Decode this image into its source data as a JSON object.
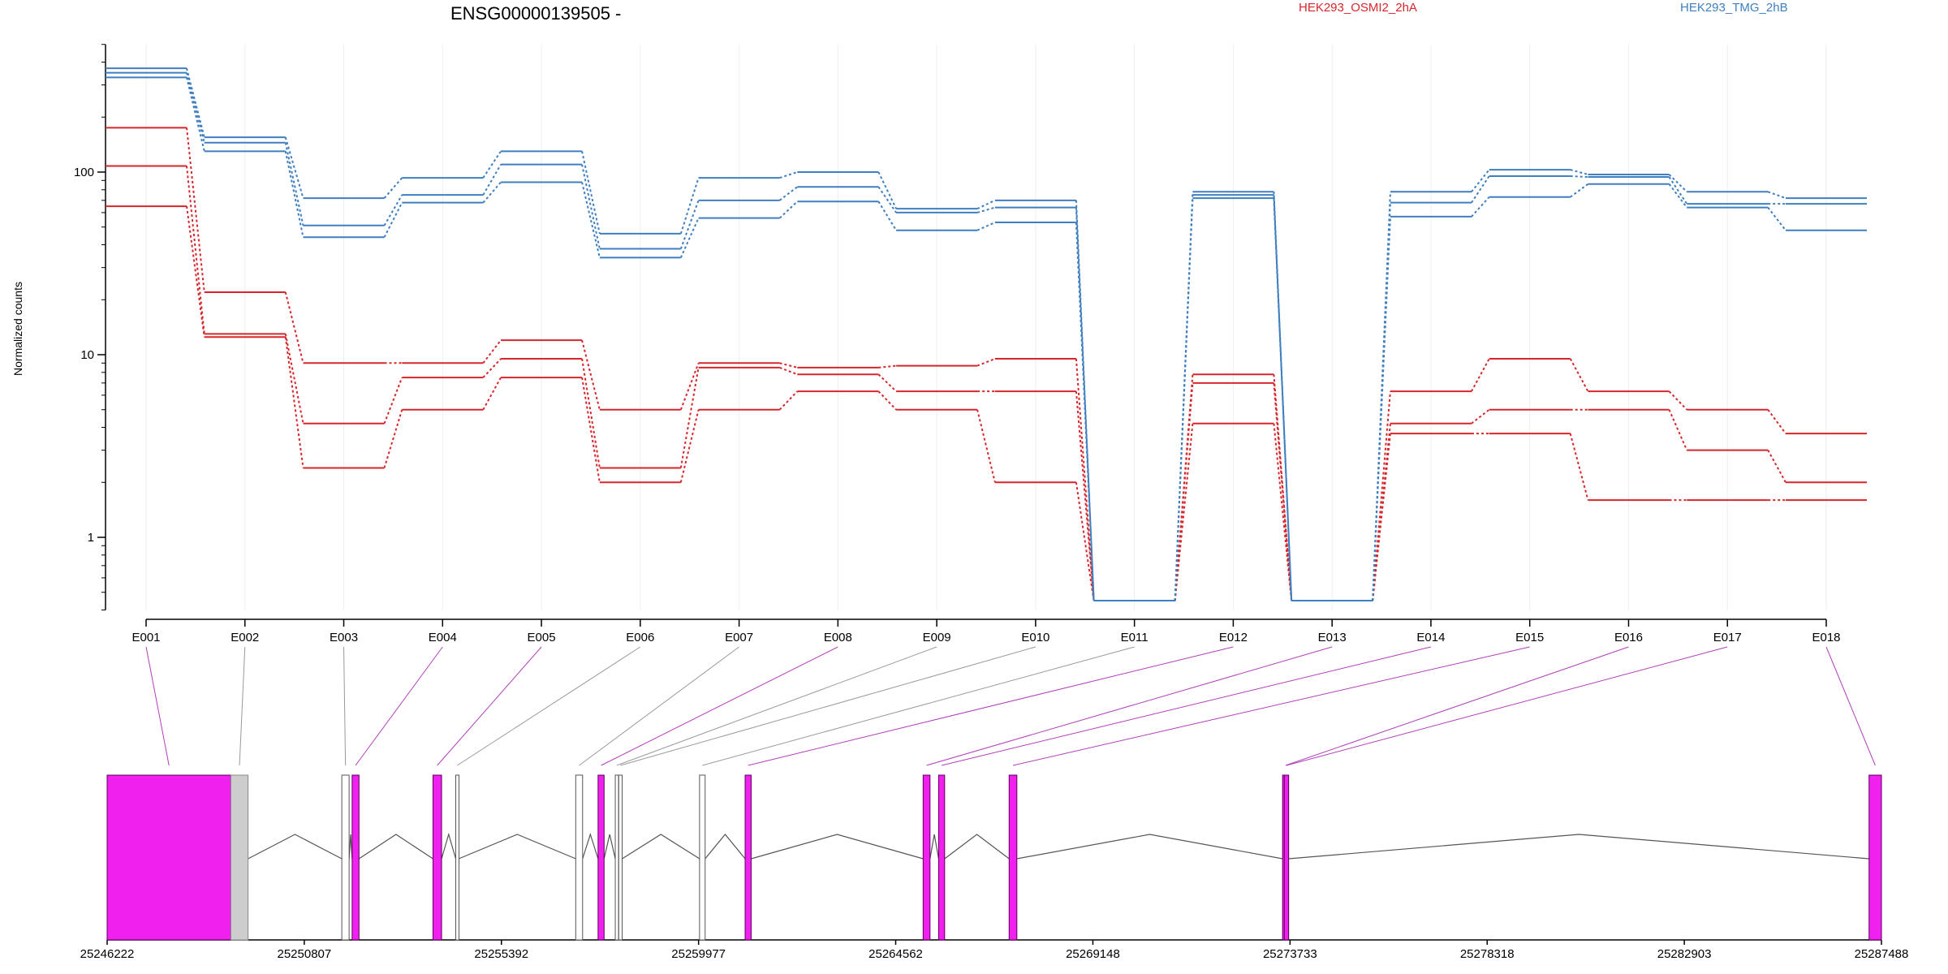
{
  "title": "ENSG00000139505 -",
  "legend": [
    {
      "name": "HEK293_OSMI2_2hA",
      "color": "#d7262b"
    },
    {
      "name": "HEK293_TMG_2hB",
      "color": "#3f7fbf"
    }
  ],
  "colors": {
    "osmi": "#d7262b",
    "tmg": "#3f7fbf",
    "significant_exon": "#f020ef",
    "gray_exon": "#cdcdcd",
    "axis": "#000000",
    "grid": "#eeeeee",
    "connector_significant": "#b040b8",
    "connector_plain": "#9a9a9a"
  },
  "chart_data": {
    "type": "line",
    "ylabel": "Normalized counts",
    "yscale": "log",
    "ylim": [
      0.4,
      500
    ],
    "yticks": [
      1,
      10,
      100
    ],
    "ytick_labels": [
      "1",
      "10",
      "100"
    ],
    "categories": [
      "E001",
      "E002",
      "E003",
      "E004",
      "E005",
      "E006",
      "E007",
      "E008",
      "E009",
      "E010",
      "E011",
      "E012",
      "E013",
      "E014",
      "E015",
      "E016",
      "E017",
      "E018"
    ],
    "series": [
      {
        "group": "HEK293_OSMI2_2hA",
        "color": "#d7262b",
        "values": [
          175,
          22,
          9,
          9,
          12,
          5,
          9,
          8.5,
          8.7,
          9.5,
          0.45,
          7.8,
          0.45,
          6.3,
          9.5,
          6.3,
          5,
          3.7
        ]
      },
      {
        "group": "HEK293_OSMI2_2hA",
        "color": "#d7262b",
        "values": [
          108,
          13,
          4.2,
          7.5,
          9.5,
          2.4,
          8.5,
          7.8,
          6.3,
          6.3,
          0.45,
          7,
          0.45,
          4.2,
          5,
          5,
          3,
          2
        ]
      },
      {
        "group": "HEK293_OSMI2_2hA",
        "color": "#d7262b",
        "values": [
          65,
          12.5,
          2.4,
          5,
          7.5,
          2,
          5,
          6.3,
          5,
          2,
          0.45,
          4.2,
          0.45,
          3.7,
          3.7,
          1.6,
          1.6,
          1.6
        ]
      },
      {
        "group": "HEK293_TMG_2hB",
        "color": "#3f7fbf",
        "values": [
          370,
          155,
          72,
          93,
          130,
          46,
          93,
          100,
          63,
          70,
          0.45,
          78,
          0.45,
          78,
          103,
          97,
          78,
          72
        ]
      },
      {
        "group": "HEK293_TMG_2hB",
        "color": "#3f7fbf",
        "values": [
          350,
          145,
          51,
          75,
          110,
          38,
          70,
          83,
          60,
          64,
          0.45,
          75,
          0.45,
          68,
          95,
          94,
          67,
          67
        ]
      },
      {
        "group": "HEK293_TMG_2hB",
        "color": "#3f7fbf",
        "values": [
          330,
          130,
          44,
          68,
          88,
          34,
          56,
          69,
          48,
          53,
          0.45,
          72,
          0.45,
          57,
          73,
          86,
          64,
          48
        ]
      }
    ]
  },
  "gene_model": {
    "start": 25246222,
    "end": 25287488,
    "ticks": [
      25246222,
      25250807,
      25255392,
      25259977,
      25264562,
      25269148,
      25273733,
      25278318,
      25282903,
      25287488
    ],
    "tick_labels": [
      "25246222",
      "25250807",
      "25255392",
      "25259977",
      "25264562",
      "25269148",
      "25273733",
      "25278318",
      "25282903",
      "25287488"
    ],
    "exons": [
      {
        "id": "E001",
        "start": 25246222,
        "end": 25249100,
        "style": "significant"
      },
      {
        "id": "E002",
        "start": 25249100,
        "end": 25249500,
        "style": "gray"
      },
      {
        "id": "E003",
        "start": 25251680,
        "end": 25251850,
        "style": "white"
      },
      {
        "id": "E004",
        "start": 25251920,
        "end": 25252080,
        "style": "significant"
      },
      {
        "id": "E005",
        "start": 25253800,
        "end": 25254000,
        "style": "significant"
      },
      {
        "id": "E006",
        "start": 25254330,
        "end": 25254400,
        "style": "white"
      },
      {
        "id": "E007",
        "start": 25257120,
        "end": 25257280,
        "style": "white"
      },
      {
        "id": "E008",
        "start": 25257640,
        "end": 25257780,
        "style": "significant"
      },
      {
        "id": "E009",
        "start": 25258040,
        "end": 25258110,
        "style": "white"
      },
      {
        "id": "E010",
        "start": 25258120,
        "end": 25258200,
        "style": "white"
      },
      {
        "id": "E011",
        "start": 25260000,
        "end": 25260130,
        "style": "white"
      },
      {
        "id": "E012",
        "start": 25261060,
        "end": 25261200,
        "style": "significant"
      },
      {
        "id": "E013",
        "start": 25265200,
        "end": 25265360,
        "style": "significant"
      },
      {
        "id": "E014",
        "start": 25265560,
        "end": 25265700,
        "style": "significant"
      },
      {
        "id": "E015",
        "start": 25267200,
        "end": 25267380,
        "style": "significant"
      },
      {
        "id": "E016",
        "start": 25273560,
        "end": 25273700,
        "style": "significant"
      },
      {
        "id": "E017",
        "start": 25273600,
        "end": 25273700,
        "style": "significant"
      },
      {
        "id": "E018",
        "start": 25287200,
        "end": 25287488,
        "style": "significant"
      }
    ]
  }
}
